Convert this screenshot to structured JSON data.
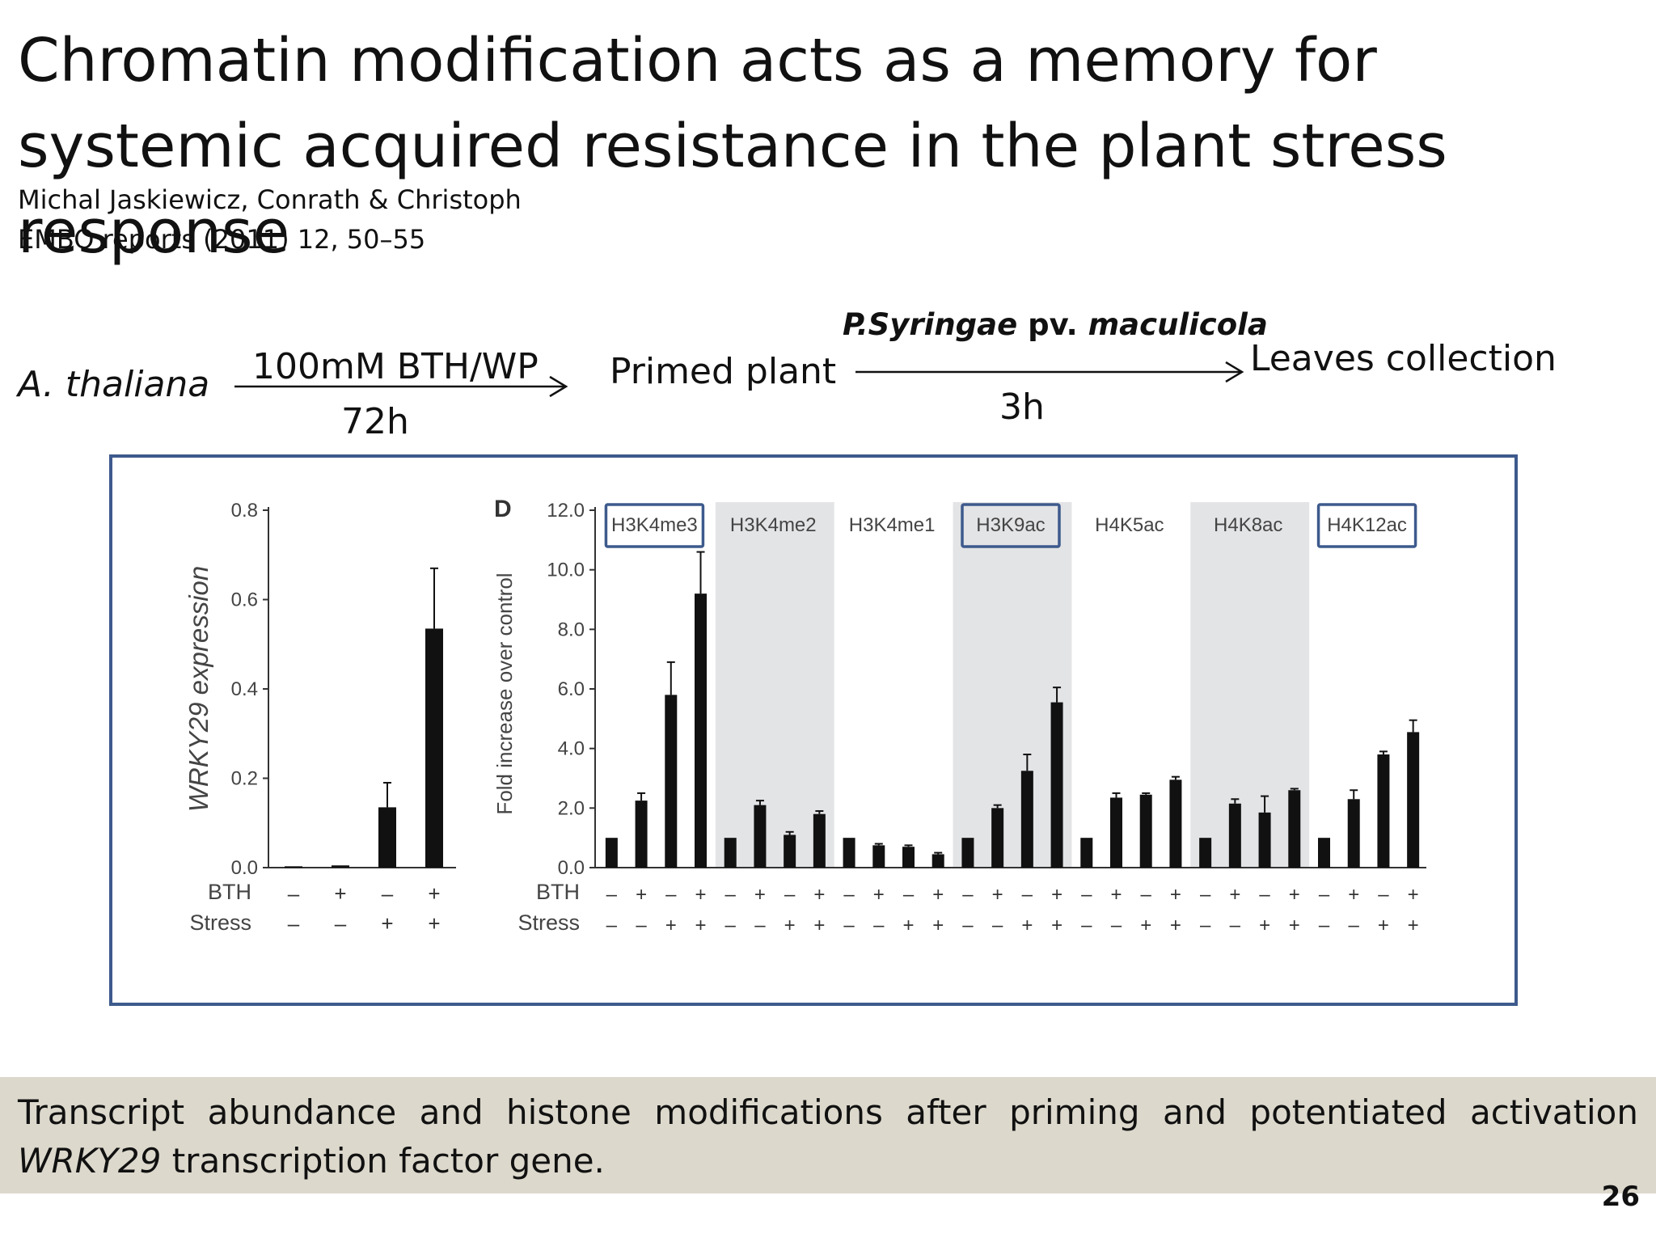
{
  "title": "Chromatin modification acts as a memory for systemic acquired resistance in the plant stress response",
  "citation": {
    "authors": "Michal Jaskiewicz, Conrath & Christoph",
    "journal": "EMBO reports (2011) 12, 50–55"
  },
  "protocol": {
    "organism": "A. thaliana",
    "treatment": "100mM BTH/WP",
    "treatment_time": "72h",
    "intermediate": "Primed plant",
    "pathogen_bold": "P.Syringae",
    "pathogen_mid": " pv. ",
    "pathogen_end": "maculicola",
    "infection_time": "3h",
    "endpoint": "Leaves collection"
  },
  "chart_data": [
    {
      "type": "bar",
      "ylabel": "WRKY29 expression",
      "ylim": [
        0,
        0.8
      ],
      "yticks": [
        "0.0",
        "0.2",
        "0.4",
        "0.6",
        "0.8"
      ],
      "row_labels": [
        "BTH",
        "Stress"
      ],
      "categories": [
        {
          "bth": "–",
          "stress": "–"
        },
        {
          "bth": "+",
          "stress": "–"
        },
        {
          "bth": "–",
          "stress": "+"
        },
        {
          "bth": "+",
          "stress": "+"
        }
      ],
      "values": [
        0.003,
        0.005,
        0.135,
        0.535
      ],
      "errors": [
        0,
        0,
        0.055,
        0.135
      ]
    },
    {
      "type": "bar",
      "panel_letter": "D",
      "ylabel": "Fold increase over control",
      "ylim": [
        0,
        12
      ],
      "yticks": [
        "0.0",
        "2.0",
        "4.0",
        "6.0",
        "8.0",
        "10.0",
        "12.0"
      ],
      "row_labels": [
        "BTH",
        "Stress"
      ],
      "bth_pattern": [
        "–",
        "+",
        "–",
        "+"
      ],
      "stress_pattern": [
        "–",
        "–",
        "+",
        "+"
      ],
      "groups": [
        {
          "name": "H3K4me3",
          "shaded": false,
          "boxed": true,
          "values": [
            1.0,
            2.25,
            5.8,
            9.2
          ],
          "errors": [
            0,
            0.25,
            1.1,
            1.4
          ]
        },
        {
          "name": "H3K4me2",
          "shaded": true,
          "boxed": false,
          "values": [
            1.0,
            2.1,
            1.1,
            1.8
          ],
          "errors": [
            0,
            0.15,
            0.1,
            0.1
          ]
        },
        {
          "name": "H3K4me1",
          "shaded": false,
          "boxed": false,
          "values": [
            1.0,
            0.75,
            0.7,
            0.45
          ],
          "errors": [
            0,
            0.05,
            0.05,
            0.05
          ]
        },
        {
          "name": "H3K9ac",
          "shaded": true,
          "boxed": true,
          "values": [
            1.0,
            2.0,
            3.25,
            5.55
          ],
          "errors": [
            0,
            0.1,
            0.55,
            0.5
          ]
        },
        {
          "name": "H4K5ac",
          "shaded": false,
          "boxed": false,
          "values": [
            1.0,
            2.35,
            2.45,
            2.95
          ],
          "errors": [
            0,
            0.15,
            0.05,
            0.1
          ]
        },
        {
          "name": "H4K8ac",
          "shaded": true,
          "boxed": false,
          "values": [
            1.0,
            2.15,
            1.85,
            2.6
          ],
          "errors": [
            0,
            0.15,
            0.55,
            0.05
          ]
        },
        {
          "name": "H4K12ac",
          "shaded": false,
          "boxed": true,
          "values": [
            1.0,
            2.3,
            3.8,
            4.55
          ],
          "errors": [
            0,
            0.3,
            0.1,
            0.4
          ]
        }
      ]
    }
  ],
  "caption": {
    "line1": "Transcript abundance and histone modifications after priming and potentiated activation",
    "gene": "WRKY29",
    "line2_rest": " transcription factor gene."
  },
  "slide_number": "26",
  "colors": {
    "frame": "#3d5a8c",
    "bars": "#111111",
    "shade": "#e3e4e6",
    "caption_band": "#dcd8cc"
  }
}
